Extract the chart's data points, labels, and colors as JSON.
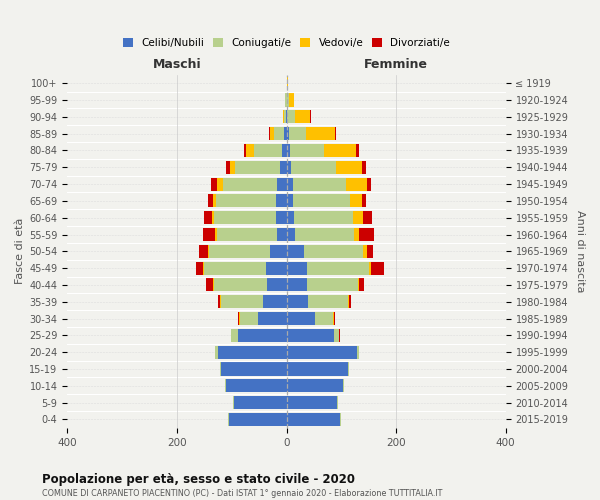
{
  "age_groups": [
    "0-4",
    "5-9",
    "10-14",
    "15-19",
    "20-24",
    "25-29",
    "30-34",
    "35-39",
    "40-44",
    "45-49",
    "50-54",
    "55-59",
    "60-64",
    "65-69",
    "70-74",
    "75-79",
    "80-84",
    "85-89",
    "90-94",
    "95-99",
    "100+"
  ],
  "birth_years": [
    "2015-2019",
    "2010-2014",
    "2005-2009",
    "2000-2004",
    "1995-1999",
    "1990-1994",
    "1985-1989",
    "1980-1984",
    "1975-1979",
    "1970-1974",
    "1965-1969",
    "1960-1964",
    "1955-1959",
    "1950-1954",
    "1945-1949",
    "1940-1944",
    "1935-1939",
    "1930-1934",
    "1925-1929",
    "1920-1924",
    "≤ 1919"
  ],
  "male_celibi": [
    105,
    95,
    110,
    120,
    125,
    88,
    52,
    42,
    35,
    38,
    30,
    18,
    20,
    20,
    18,
    12,
    8,
    4,
    1,
    0,
    0
  ],
  "male_coniugati": [
    2,
    2,
    2,
    2,
    5,
    13,
    33,
    78,
    98,
    112,
    112,
    108,
    112,
    108,
    98,
    82,
    52,
    18,
    4,
    2,
    0
  ],
  "male_vedovi": [
    0,
    0,
    0,
    0,
    0,
    0,
    1,
    1,
    2,
    2,
    2,
    4,
    4,
    7,
    11,
    9,
    14,
    8,
    2,
    0,
    0
  ],
  "male_divorziati": [
    0,
    0,
    0,
    0,
    0,
    1,
    2,
    4,
    11,
    14,
    16,
    23,
    14,
    9,
    10,
    7,
    3,
    2,
    0,
    0,
    0
  ],
  "female_nubili": [
    98,
    92,
    103,
    112,
    128,
    87,
    52,
    40,
    38,
    38,
    32,
    16,
    14,
    12,
    11,
    8,
    7,
    4,
    1,
    0,
    0
  ],
  "female_coniugate": [
    2,
    2,
    2,
    2,
    4,
    9,
    33,
    72,
    93,
    112,
    108,
    108,
    108,
    103,
    97,
    82,
    62,
    32,
    14,
    4,
    0
  ],
  "female_vedove": [
    0,
    0,
    0,
    0,
    0,
    0,
    1,
    2,
    2,
    4,
    7,
    9,
    17,
    23,
    38,
    48,
    58,
    52,
    28,
    9,
    2
  ],
  "female_divorziate": [
    0,
    0,
    0,
    0,
    0,
    1,
    2,
    4,
    9,
    23,
    11,
    26,
    17,
    7,
    9,
    7,
    5,
    3,
    2,
    0,
    0
  ],
  "colors": {
    "celibi": "#4472C4",
    "coniugati": "#b8d08d",
    "vedovi": "#ffc000",
    "divorziati": "#cc0000"
  },
  "title": "Popolazione per età, sesso e stato civile - 2020",
  "subtitle": "COMUNE DI CARPANETO PIACENTINO (PC) - Dati ISTAT 1° gennaio 2020 - Elaborazione TUTTITALIA.IT",
  "xlabel_left": "Maschi",
  "xlabel_right": "Femmine",
  "ylabel_left": "Fasce di età",
  "ylabel_right": "Anni di nascita",
  "xlim": 400,
  "legend_labels": [
    "Celibi/Nubili",
    "Coniugati/e",
    "Vedovi/e",
    "Divorziati/e"
  ],
  "bg_color": "#f2f2ee"
}
